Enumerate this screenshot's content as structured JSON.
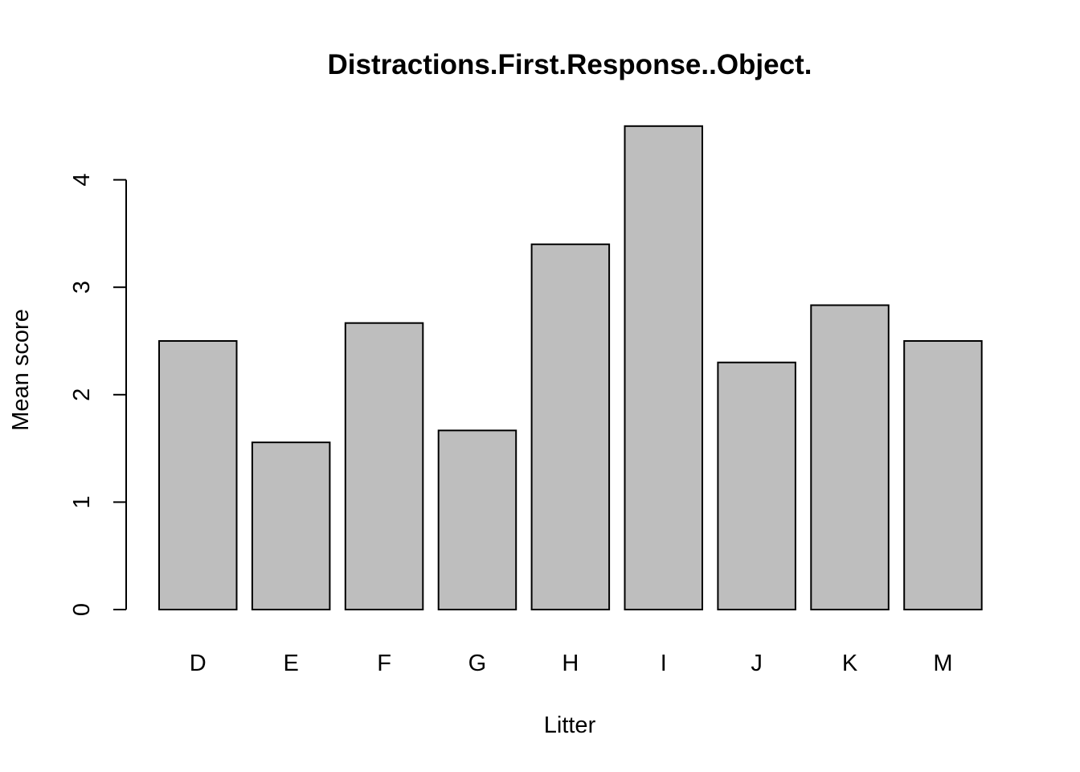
{
  "chart_data": {
    "type": "bar",
    "title": "Distractions.First.Response..Object.",
    "xlabel": "Litter",
    "ylabel": "Mean score",
    "categories": [
      "D",
      "E",
      "F",
      "G",
      "H",
      "I",
      "J",
      "K",
      "M"
    ],
    "values": [
      2.5,
      1.556,
      2.667,
      1.667,
      3.4,
      4.5,
      2.3,
      2.833,
      2.5
    ],
    "ylim": [
      0,
      4.5
    ],
    "y_ticks": [
      "0",
      "1",
      "2",
      "3",
      "4"
    ],
    "bar_color": "#bebebe",
    "grid": false,
    "legend": "none"
  }
}
